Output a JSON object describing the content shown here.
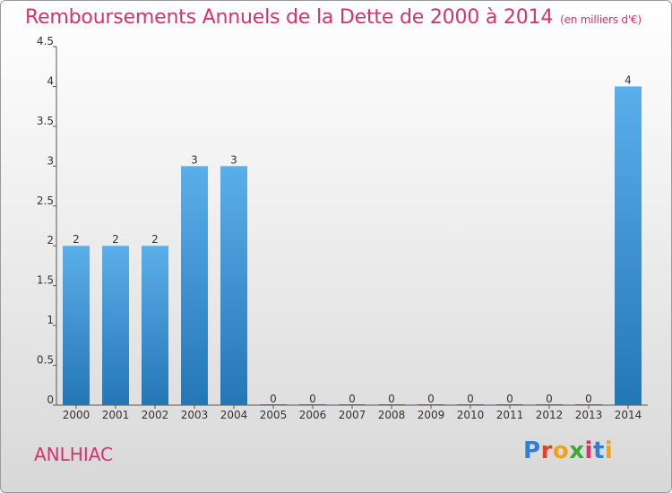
{
  "title": "Remboursements Annuels de la Dette de 2000 à 2014",
  "unit": "(en milliers d'€)",
  "town": "ANLHIAC",
  "logo": "Proxiti",
  "colors": {
    "title": "#d6336c",
    "bar_top": "#5aaeea",
    "bar_bottom": "#2477b5"
  },
  "chart_data": {
    "type": "bar",
    "categories": [
      "2000",
      "2001",
      "2002",
      "2003",
      "2004",
      "2005",
      "2006",
      "2007",
      "2008",
      "2009",
      "2010",
      "2011",
      "2012",
      "2013",
      "2014"
    ],
    "values": [
      2,
      2,
      2,
      3,
      3,
      0,
      0,
      0,
      0,
      0,
      0,
      0,
      0,
      0,
      4
    ],
    "data_labels": [
      "2",
      "2",
      "2",
      "3",
      "3",
      "0",
      "0",
      "0",
      "0",
      "0",
      "0",
      "0",
      "0",
      "0",
      "4"
    ],
    "y_ticks": [
      "0",
      "0.5",
      "1",
      "1.5",
      "2",
      "2.5",
      "3",
      "3.5",
      "4",
      "4.5"
    ],
    "ylim": [
      0,
      4.5
    ],
    "grid": false,
    "legend": "none"
  }
}
